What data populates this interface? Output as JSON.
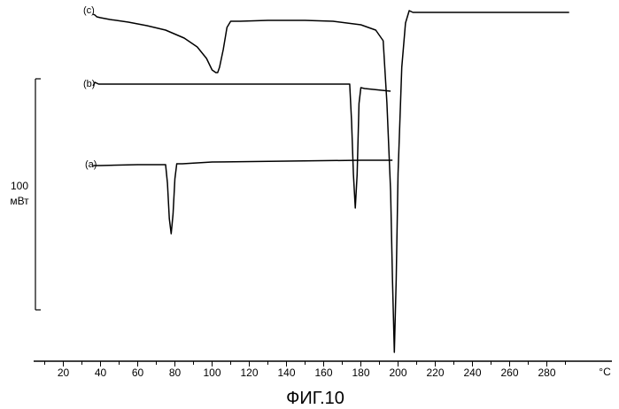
{
  "chart_data": {
    "type": "line",
    "title": "",
    "caption": "ФИГ.10",
    "xlabel": "",
    "ylabel": "",
    "x_unit": "°C",
    "xlim": [
      5,
      292
    ],
    "x_ticks": [
      20,
      40,
      60,
      80,
      100,
      120,
      140,
      160,
      180,
      200,
      220,
      240,
      260,
      280
    ],
    "scale_bar": {
      "value": "100",
      "unit": "мВт"
    },
    "grid": false,
    "legend": "none",
    "y_units": "relative heat flow (offset curves)",
    "series": [
      {
        "name": "(c)",
        "x": [
          36,
          37,
          38,
          40,
          45,
          55,
          65,
          75,
          85,
          92,
          97,
          100,
          102,
          103,
          104,
          106,
          108,
          110,
          115,
          130,
          150,
          165,
          180,
          188,
          192,
          194,
          196,
          197,
          198,
          199,
          200,
          202,
          204,
          206,
          208,
          210,
          230,
          260,
          292
        ],
        "y": [
          0,
          -1,
          -3,
          -4,
          -6,
          -9,
          -13,
          -18,
          -27,
          -37,
          -50,
          -63,
          -66,
          -66,
          -60,
          -40,
          -15,
          -8,
          -8,
          -7,
          -7,
          -8,
          -12,
          -18,
          -30,
          -100,
          -200,
          -300,
          -382,
          -300,
          -180,
          -60,
          -10,
          4,
          2,
          2,
          2,
          2,
          2
        ]
      },
      {
        "name": "(b)",
        "x": [
          36,
          37,
          39,
          60,
          100,
          140,
          170,
          174,
          175,
          176,
          177,
          178,
          179,
          180,
          182,
          196
        ],
        "y": [
          0,
          4,
          2,
          2,
          2,
          2,
          2,
          2,
          -40,
          -100,
          -138,
          -100,
          -20,
          -2,
          -3,
          -6
        ]
      },
      {
        "name": "(a)",
        "x": [
          36,
          40,
          60,
          72,
          75,
          76,
          77,
          78,
          79,
          80,
          81,
          84,
          100,
          140,
          180,
          197
        ],
        "y": [
          0,
          0,
          1,
          1,
          1,
          -20,
          -60,
          -77,
          -55,
          -15,
          2,
          2,
          4,
          5,
          6,
          6
        ]
      }
    ]
  }
}
